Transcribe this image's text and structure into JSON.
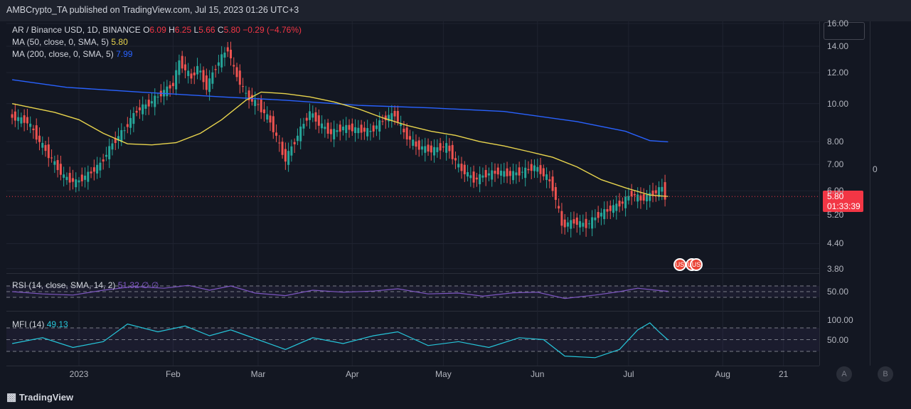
{
  "header": {
    "text": "AMBCrypto_TA published on TradingView.com, Jul 15, 2023 01:26 UTC+3"
  },
  "legend": {
    "symbol": "AR / Binance USD, 1D, BINANCE",
    "o_label": "O",
    "o": "6.09",
    "h_label": "H",
    "h": "6.25",
    "l_label": "L",
    "l": "5.66",
    "c_label": "C",
    "c": "5.80",
    "change": "−0.29 (−4.76%)",
    "ma50": "MA (50, close, 0, SMA, 5)",
    "ma50_val": "5.80",
    "ma200": "MA (200, close, 0, SMA, 5)",
    "ma200_val": "7.99",
    "rsi": "RSI (14, close, SMA, 14, 2)",
    "rsi_vals": "51.32  ∅  ∅",
    "mfi": "MFI (14)",
    "mfi_val": "49.13"
  },
  "price_tag": {
    "price": "5.80",
    "countdown": "01:33:39"
  },
  "right_axis_extra": "0",
  "colors": {
    "up": "#26a69a",
    "down": "#ef5350",
    "ma50": "#e8d44d",
    "ma200": "#2962ff",
    "rsi": "#7e57c2",
    "mfi": "#26c6da"
  },
  "footer": {
    "logo": "TradingView"
  },
  "buttons": {
    "a": "A",
    "b": "B"
  },
  "chart_data": {
    "type": "candlestick",
    "title": "AR / Binance USD, 1D, BINANCE",
    "scale": "log",
    "ylim": [
      3.7,
      16.2
    ],
    "y_ticks": [
      "16.00",
      "14.00",
      "12.00",
      "10.00",
      "8.00",
      "7.00",
      "6.00",
      "5.20",
      "4.40",
      "3.80"
    ],
    "x_ticks": [
      {
        "label": "2023",
        "day": 0
      },
      {
        "label": "Feb",
        "day": 31
      },
      {
        "label": "Mar",
        "day": 59
      },
      {
        "label": "Apr",
        "day": 90
      },
      {
        "label": "May",
        "day": 120
      },
      {
        "label": "Jun",
        "day": 151
      },
      {
        "label": "Jul",
        "day": 181
      },
      {
        "label": "Aug",
        "day": 212
      },
      {
        "label": "21",
        "day": 232
      }
    ],
    "series": {
      "close": [
        {
          "date": "2022-12-10",
          "close": 9.3
        },
        {
          "date": "2022-12-16",
          "close": 9.0
        },
        {
          "date": "2022-12-20",
          "close": 8.0
        },
        {
          "date": "2022-12-24",
          "close": 7.2
        },
        {
          "date": "2022-12-28",
          "close": 6.5
        },
        {
          "date": "2023-01-01",
          "close": 6.3
        },
        {
          "date": "2023-01-05",
          "close": 6.6
        },
        {
          "date": "2023-01-09",
          "close": 7.0
        },
        {
          "date": "2023-01-13",
          "close": 7.9
        },
        {
          "date": "2023-01-17",
          "close": 8.6
        },
        {
          "date": "2023-01-21",
          "close": 9.6
        },
        {
          "date": "2023-01-25",
          "close": 10.0
        },
        {
          "date": "2023-01-29",
          "close": 10.6
        },
        {
          "date": "2023-02-02",
          "close": 11.2
        },
        {
          "date": "2023-02-04",
          "close": 12.8
        },
        {
          "date": "2023-02-08",
          "close": 11.6
        },
        {
          "date": "2023-02-10",
          "close": 12.4
        },
        {
          "date": "2023-02-13",
          "close": 11.0
        },
        {
          "date": "2023-02-17",
          "close": 12.8
        },
        {
          "date": "2023-02-20",
          "close": 13.8
        },
        {
          "date": "2023-02-22",
          "close": 12.2
        },
        {
          "date": "2023-02-26",
          "close": 10.5
        },
        {
          "date": "2023-03-02",
          "close": 9.9
        },
        {
          "date": "2023-03-06",
          "close": 9.0
        },
        {
          "date": "2023-03-09",
          "close": 7.8
        },
        {
          "date": "2023-03-11",
          "close": 7.2
        },
        {
          "date": "2023-03-14",
          "close": 8.0
        },
        {
          "date": "2023-03-17",
          "close": 8.9
        },
        {
          "date": "2023-03-19",
          "close": 9.5
        },
        {
          "date": "2023-03-22",
          "close": 8.9
        },
        {
          "date": "2023-03-26",
          "close": 8.4
        },
        {
          "date": "2023-03-30",
          "close": 8.7
        },
        {
          "date": "2023-04-03",
          "close": 8.6
        },
        {
          "date": "2023-04-08",
          "close": 8.5
        },
        {
          "date": "2023-04-13",
          "close": 9.2
        },
        {
          "date": "2023-04-16",
          "close": 9.4
        },
        {
          "date": "2023-04-19",
          "close": 8.4
        },
        {
          "date": "2023-04-23",
          "close": 7.8
        },
        {
          "date": "2023-04-28",
          "close": 7.6
        },
        {
          "date": "2023-05-03",
          "close": 7.8
        },
        {
          "date": "2023-05-07",
          "close": 6.9
        },
        {
          "date": "2023-05-12",
          "close": 6.4
        },
        {
          "date": "2023-05-16",
          "close": 6.6
        },
        {
          "date": "2023-05-20",
          "close": 6.7
        },
        {
          "date": "2023-05-24",
          "close": 6.6
        },
        {
          "date": "2023-05-28",
          "close": 6.7
        },
        {
          "date": "2023-06-01",
          "close": 6.9
        },
        {
          "date": "2023-06-05",
          "close": 6.5
        },
        {
          "date": "2023-06-07",
          "close": 6.1
        },
        {
          "date": "2023-06-10",
          "close": 4.9
        },
        {
          "date": "2023-06-14",
          "close": 5.0
        },
        {
          "date": "2023-06-18",
          "close": 4.9
        },
        {
          "date": "2023-06-22",
          "close": 5.2
        },
        {
          "date": "2023-06-26",
          "close": 5.4
        },
        {
          "date": "2023-06-30",
          "close": 5.6
        },
        {
          "date": "2023-07-03",
          "close": 5.9
        },
        {
          "date": "2023-07-06",
          "close": 5.7
        },
        {
          "date": "2023-07-10",
          "close": 5.9
        },
        {
          "date": "2023-07-13",
          "close": 6.1
        },
        {
          "date": "2023-07-14",
          "close": 5.8
        }
      ],
      "ma50": [
        {
          "date": "2022-12-10",
          "value": 10.0
        },
        {
          "date": "2022-12-24",
          "value": 9.5
        },
        {
          "date": "2023-01-01",
          "value": 9.1
        },
        {
          "date": "2023-01-09",
          "value": 8.4
        },
        {
          "date": "2023-01-17",
          "value": 7.9
        },
        {
          "date": "2023-01-25",
          "value": 7.85
        },
        {
          "date": "2023-02-02",
          "value": 7.95
        },
        {
          "date": "2023-02-10",
          "value": 8.4
        },
        {
          "date": "2023-02-17",
          "value": 9.1
        },
        {
          "date": "2023-02-25",
          "value": 10.2
        },
        {
          "date": "2023-03-02",
          "value": 10.7
        },
        {
          "date": "2023-03-10",
          "value": 10.6
        },
        {
          "date": "2023-03-18",
          "value": 10.4
        },
        {
          "date": "2023-03-26",
          "value": 10.1
        },
        {
          "date": "2023-04-03",
          "value": 9.7
        },
        {
          "date": "2023-04-11",
          "value": 9.2
        },
        {
          "date": "2023-04-19",
          "value": 8.8
        },
        {
          "date": "2023-04-27",
          "value": 8.5
        },
        {
          "date": "2023-05-05",
          "value": 8.3
        },
        {
          "date": "2023-05-13",
          "value": 8.0
        },
        {
          "date": "2023-05-21",
          "value": 7.8
        },
        {
          "date": "2023-05-29",
          "value": 7.55
        },
        {
          "date": "2023-06-06",
          "value": 7.3
        },
        {
          "date": "2023-06-14",
          "value": 6.9
        },
        {
          "date": "2023-06-22",
          "value": 6.4
        },
        {
          "date": "2023-06-30",
          "value": 6.1
        },
        {
          "date": "2023-07-08",
          "value": 5.85
        },
        {
          "date": "2023-07-14",
          "value": 5.8
        }
      ],
      "ma200": [
        {
          "date": "2022-12-10",
          "value": 11.5
        },
        {
          "date": "2022-12-28",
          "value": 11.0
        },
        {
          "date": "2023-01-21",
          "value": 10.7
        },
        {
          "date": "2023-02-17",
          "value": 10.4
        },
        {
          "date": "2023-03-10",
          "value": 10.2
        },
        {
          "date": "2023-04-03",
          "value": 9.9
        },
        {
          "date": "2023-04-27",
          "value": 9.75
        },
        {
          "date": "2023-05-21",
          "value": 9.55
        },
        {
          "date": "2023-06-14",
          "value": 9.0
        },
        {
          "date": "2023-06-30",
          "value": 8.5
        },
        {
          "date": "2023-07-08",
          "value": 8.05
        },
        {
          "date": "2023-07-14",
          "value": 7.99
        }
      ],
      "rsi": [
        {
          "date": "2022-12-10",
          "value": 50
        },
        {
          "date": "2022-12-20",
          "value": 42
        },
        {
          "date": "2022-12-30",
          "value": 38
        },
        {
          "date": "2023-01-09",
          "value": 55
        },
        {
          "date": "2023-01-19",
          "value": 68
        },
        {
          "date": "2023-01-29",
          "value": 62
        },
        {
          "date": "2023-02-06",
          "value": 72
        },
        {
          "date": "2023-02-13",
          "value": 55
        },
        {
          "date": "2023-02-20",
          "value": 70
        },
        {
          "date": "2023-02-28",
          "value": 45
        },
        {
          "date": "2023-03-10",
          "value": 36
        },
        {
          "date": "2023-03-19",
          "value": 55
        },
        {
          "date": "2023-03-29",
          "value": 48
        },
        {
          "date": "2023-04-08",
          "value": 52
        },
        {
          "date": "2023-04-16",
          "value": 60
        },
        {
          "date": "2023-04-26",
          "value": 42
        },
        {
          "date": "2023-05-06",
          "value": 45
        },
        {
          "date": "2023-05-14",
          "value": 34
        },
        {
          "date": "2023-05-24",
          "value": 46
        },
        {
          "date": "2023-06-01",
          "value": 48
        },
        {
          "date": "2023-06-10",
          "value": 26
        },
        {
          "date": "2023-06-20",
          "value": 38
        },
        {
          "date": "2023-06-28",
          "value": 50
        },
        {
          "date": "2023-07-04",
          "value": 62
        },
        {
          "date": "2023-07-10",
          "value": 55
        },
        {
          "date": "2023-07-14",
          "value": 51.32
        }
      ],
      "mfi": [
        {
          "date": "2022-12-10",
          "value": 40
        },
        {
          "date": "2022-12-20",
          "value": 55
        },
        {
          "date": "2022-12-30",
          "value": 30
        },
        {
          "date": "2023-01-09",
          "value": 45
        },
        {
          "date": "2023-01-17",
          "value": 90
        },
        {
          "date": "2023-01-27",
          "value": 70
        },
        {
          "date": "2023-02-05",
          "value": 85
        },
        {
          "date": "2023-02-13",
          "value": 60
        },
        {
          "date": "2023-02-20",
          "value": 75
        },
        {
          "date": "2023-03-01",
          "value": 50
        },
        {
          "date": "2023-03-10",
          "value": 25
        },
        {
          "date": "2023-03-19",
          "value": 55
        },
        {
          "date": "2023-03-29",
          "value": 40
        },
        {
          "date": "2023-04-08",
          "value": 60
        },
        {
          "date": "2023-04-16",
          "value": 70
        },
        {
          "date": "2023-04-26",
          "value": 35
        },
        {
          "date": "2023-05-06",
          "value": 45
        },
        {
          "date": "2023-05-16",
          "value": 30
        },
        {
          "date": "2023-05-26",
          "value": 55
        },
        {
          "date": "2023-06-03",
          "value": 50
        },
        {
          "date": "2023-06-10",
          "value": 8
        },
        {
          "date": "2023-06-20",
          "value": 4
        },
        {
          "date": "2023-06-28",
          "value": 25
        },
        {
          "date": "2023-07-04",
          "value": 75
        },
        {
          "date": "2023-07-08",
          "value": 93
        },
        {
          "date": "2023-07-11",
          "value": 70
        },
        {
          "date": "2023-07-14",
          "value": 49.13
        }
      ]
    },
    "last_price": 5.8
  }
}
